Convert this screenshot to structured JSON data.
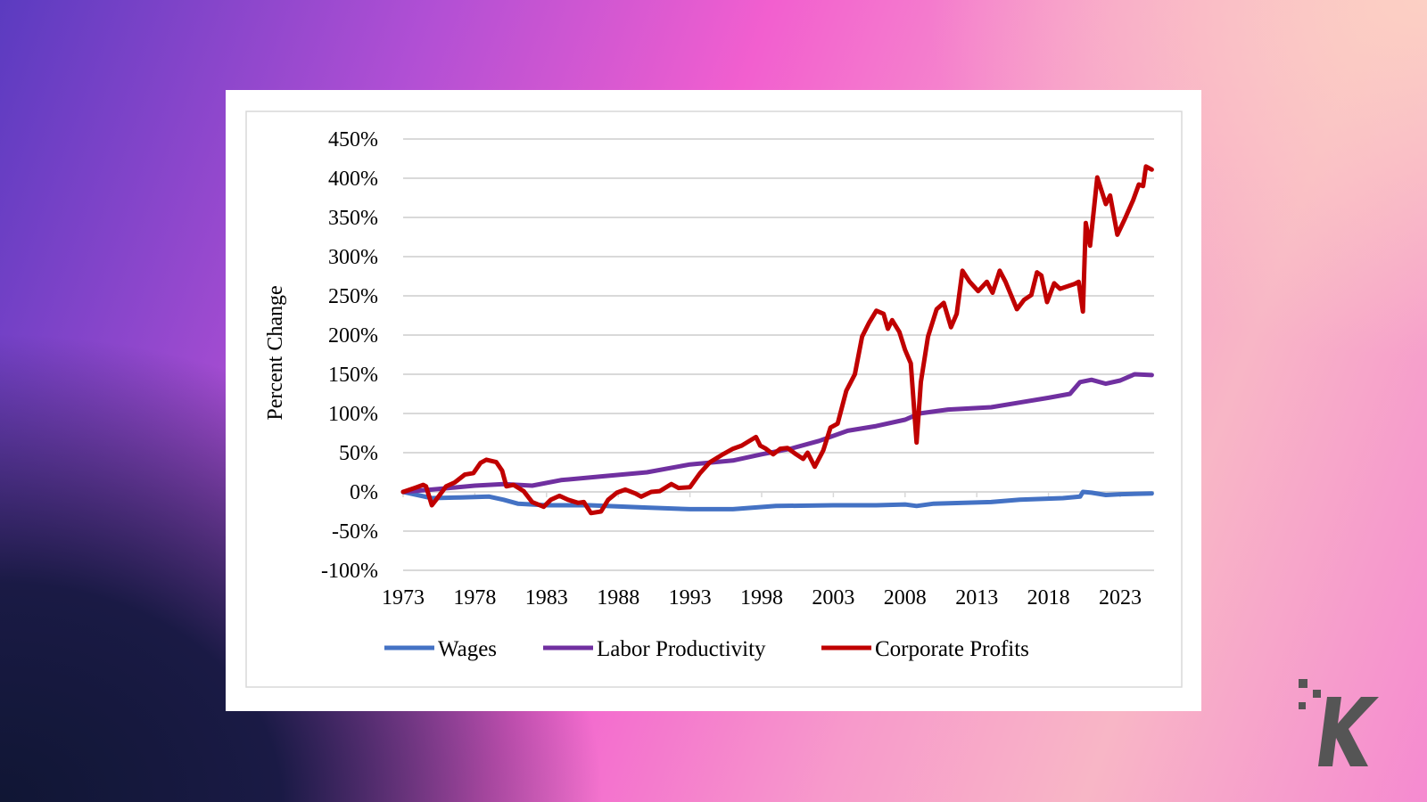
{
  "chart_data": {
    "type": "line",
    "title": "",
    "xlabel": "",
    "ylabel": "Percent Change",
    "xlim": [
      1973,
      2025.3
    ],
    "ylim": [
      -100,
      450
    ],
    "y_ticks": [
      -100,
      -50,
      0,
      50,
      100,
      150,
      200,
      250,
      300,
      350,
      400,
      450
    ],
    "y_tick_labels": [
      "-100%",
      "-50%",
      "0%",
      "50%",
      "100%",
      "150%",
      "200%",
      "250%",
      "300%",
      "350%",
      "400%",
      "450%"
    ],
    "x_ticks": [
      1973,
      1978,
      1983,
      1988,
      1993,
      1998,
      2003,
      2008,
      2013,
      2018,
      2023
    ],
    "x_tick_labels": [
      "1973",
      "1978",
      "1983",
      "1988",
      "1993",
      "1998",
      "2003",
      "2008",
      "2013",
      "2018",
      "2023"
    ],
    "grid": "horizontal",
    "legend_position": "bottom",
    "series": [
      {
        "name": "Wages",
        "color": "#4472c4",
        "x": [
          1973,
          1974,
          1975,
          1977,
          1979,
          1980,
          1981,
          1983,
          1986,
          1990,
          1993,
          1996,
          1999,
          2003,
          2006,
          2008,
          2008.8,
          2010,
          2014,
          2016,
          2019,
          2020.2,
          2020.4,
          2021,
          2022,
          2023,
          2025.2
        ],
        "y": [
          0,
          -4,
          -8,
          -7,
          -6,
          -10,
          -15,
          -17,
          -17,
          -20,
          -22,
          -22,
          -18,
          -17,
          -17,
          -16,
          -18,
          -15,
          -13,
          -10,
          -8,
          -6,
          0,
          -1,
          -4,
          -3,
          -2
        ]
      },
      {
        "name": "Labor Productivity",
        "color": "#7030a0",
        "x": [
          1973,
          1975,
          1978,
          1980,
          1982,
          1984,
          1987,
          1990,
          1993,
          1996,
          1998,
          2000,
          2002,
          2004,
          2006,
          2008,
          2009,
          2011,
          2014,
          2016,
          2018,
          2019.5,
          2020.2,
          2021,
          2022,
          2023,
          2024,
          2025.2
        ],
        "y": [
          0,
          3,
          8,
          10,
          8,
          15,
          20,
          25,
          35,
          40,
          48,
          55,
          65,
          78,
          84,
          92,
          100,
          105,
          108,
          114,
          120,
          125,
          140,
          143,
          138,
          142,
          150,
          149
        ]
      },
      {
        "name": "Corporate Profits",
        "color": "#c00000",
        "x": [
          1973,
          1973.8,
          1974.4,
          1974.6,
          1975,
          1975.3,
          1976,
          1976.6,
          1977.3,
          1977.9,
          1978.4,
          1978.8,
          1979.5,
          1979.9,
          1980.2,
          1980.7,
          1981.4,
          1982,
          1982.8,
          1983.3,
          1983.9,
          1984.5,
          1985.2,
          1985.6,
          1986.1,
          1986.8,
          1987.3,
          1987.9,
          1988.5,
          1989.2,
          1989.6,
          1990.3,
          1990.9,
          1991.7,
          1992.2,
          1993,
          1993.7,
          1994.4,
          1995.3,
          1996,
          1996.6,
          1997.6,
          1997.9,
          1998.3,
          1998.8,
          1999.3,
          1999.8,
          2000.4,
          2000.9,
          2001.2,
          2001.7,
          2002.3,
          2002.8,
          2003.3,
          2003.9,
          2004.5,
          2005,
          2005.5,
          2006,
          2006.5,
          2006.8,
          2007.1,
          2007.6,
          2008,
          2008.4,
          2008.8,
          2009.1,
          2009.6,
          2010.2,
          2010.7,
          2011.2,
          2011.6,
          2012,
          2012.5,
          2013.1,
          2013.7,
          2014.1,
          2014.6,
          2015,
          2015.8,
          2016.3,
          2016.8,
          2017.2,
          2017.5,
          2017.9,
          2018.4,
          2018.8,
          2019.8,
          2020.1,
          2020.4,
          2020.6,
          2020.9,
          2021.4,
          2022,
          2022.3,
          2022.8,
          2023.3,
          2023.9,
          2024.3,
          2024.6,
          2024.8,
          2025.2
        ],
        "y": [
          0,
          5,
          9,
          7,
          -17,
          -10,
          7,
          12,
          22,
          24,
          37,
          41,
          38,
          27,
          7,
          9,
          1,
          -13,
          -19,
          -10,
          -5,
          -10,
          -14,
          -13,
          -27,
          -25,
          -10,
          -1,
          3,
          -2,
          -6,
          0,
          1,
          10,
          5,
          6,
          24,
          38,
          48,
          55,
          59,
          70,
          59,
          55,
          48,
          55,
          56,
          48,
          42,
          50,
          32,
          53,
          82,
          87,
          129,
          150,
          198,
          216,
          231,
          227,
          208,
          219,
          204,
          181,
          164,
          63,
          140,
          198,
          233,
          241,
          210,
          227,
          282,
          268,
          256,
          268,
          254,
          282,
          268,
          233,
          245,
          251,
          280,
          276,
          242,
          266,
          259,
          265,
          268,
          230,
          343,
          314,
          401,
          367,
          378,
          328,
          347,
          372,
          392,
          390,
          415,
          411
        ]
      }
    ]
  },
  "branding": {
    "logo": "K"
  }
}
